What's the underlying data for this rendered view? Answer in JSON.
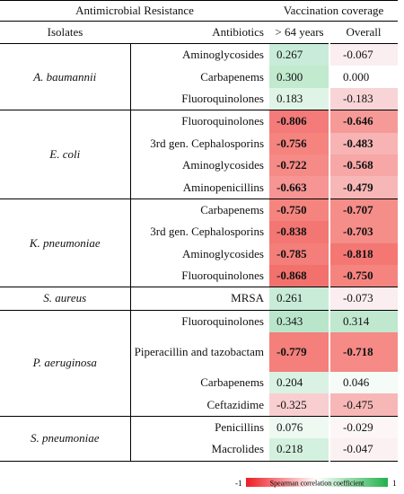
{
  "header": {
    "group_left": "Antimicrobial Resistance",
    "group_right": "Vaccination coverage",
    "col_isolates": "Isolates",
    "col_antibiotics": "Antibiotics",
    "col_age": "> 64 years",
    "col_overall": "Overall"
  },
  "groups": [
    {
      "isolate": "A. baumannii",
      "rows": [
        {
          "antibiotic": "Aminoglycosides",
          "v1": "0.267",
          "v2": "-0.067",
          "c1": "#c8ecd9",
          "c2": "#fbeef0",
          "b1": false,
          "b2": false
        },
        {
          "antibiotic": "Carbapenems",
          "v1": "0.300",
          "v2": "0.000",
          "c1": "#c2eace",
          "c2": "#ffffff",
          "b1": false,
          "b2": false
        },
        {
          "antibiotic": "Fluoroquinolones",
          "v1": "0.183",
          "v2": "-0.183",
          "c1": "#dff4e7",
          "c2": "#f8d4d7",
          "b1": false,
          "b2": false
        }
      ]
    },
    {
      "isolate": "E. coli",
      "rows": [
        {
          "antibiotic": "Fluoroquinolones",
          "v1": "-0.806",
          "v2": "-0.646",
          "c1": "#f47b79",
          "c2": "#f69a98",
          "b1": true,
          "b2": true
        },
        {
          "antibiotic": "3rd gen. Cephalosporins",
          "v1": "-0.756",
          "v2": "-0.483",
          "c1": "#f5847f",
          "c2": "#f8b4b4",
          "b1": true,
          "b2": true
        },
        {
          "antibiotic": "Aminoglycosides",
          "v1": "-0.722",
          "v2": "-0.568",
          "c1": "#f58a86",
          "c2": "#f7a7a5",
          "b1": true,
          "b2": true
        },
        {
          "antibiotic": "Aminopenicillins",
          "v1": "-0.663",
          "v2": "-0.479",
          "c1": "#f69593",
          "c2": "#f8b7b7",
          "b1": true,
          "b2": true
        }
      ]
    },
    {
      "isolate": "K. pneumoniae",
      "rows": [
        {
          "antibiotic": "Carbapenems",
          "v1": "-0.750",
          "v2": "-0.707",
          "c1": "#f5847f",
          "c2": "#f58d89",
          "b1": true,
          "b2": true
        },
        {
          "antibiotic": "3rd gen. Cephalosporins",
          "v1": "-0.838",
          "v2": "-0.703",
          "c1": "#f37672",
          "c2": "#f58d89",
          "b1": true,
          "b2": true
        },
        {
          "antibiotic": "Aminoglycosides",
          "v1": "-0.785",
          "v2": "-0.818",
          "c1": "#f47e7a",
          "c2": "#f47774",
          "b1": true,
          "b2": true
        },
        {
          "antibiotic": "Fluoroquinolones",
          "v1": "-0.868",
          "v2": "-0.750",
          "c1": "#f2716d",
          "c2": "#f5847f",
          "b1": true,
          "b2": true
        }
      ]
    },
    {
      "isolate": "S. aureus",
      "rows": [
        {
          "antibiotic": "MRSA",
          "v1": "0.261",
          "v2": "-0.073",
          "c1": "#c9ecd9",
          "c2": "#fbeef0",
          "b1": false,
          "b2": false
        }
      ]
    },
    {
      "isolate": "P. aeruginosa",
      "rows": [
        {
          "antibiotic": "Fluoroquinolones",
          "v1": "0.343",
          "v2": "0.314",
          "c1": "#b9e6cb",
          "c2": "#bfe8cf",
          "b1": false,
          "b2": false
        },
        {
          "antibiotic": "Piperacillin and tazobactam",
          "v1": "-0.779",
          "v2": "-0.718",
          "c1": "#f47f7b",
          "c2": "#f58a86",
          "b1": true,
          "b2": true,
          "tall": true
        },
        {
          "antibiotic": "Carbapenems",
          "v1": "0.204",
          "v2": "0.046",
          "c1": "#d9f2e3",
          "c2": "#f5fbf7",
          "b1": false,
          "b2": false
        },
        {
          "antibiotic": "Ceftazidime",
          "v1": "-0.325",
          "v2": "-0.475",
          "c1": "#f9ced1",
          "c2": "#f8b7b7",
          "b1": false,
          "b2": false
        }
      ]
    },
    {
      "isolate": "S. pneumoniae",
      "rows": [
        {
          "antibiotic": "Penicillins",
          "v1": "0.076",
          "v2": "-0.029",
          "c1": "#eef9f2",
          "c2": "#fdf6f6",
          "b1": false,
          "b2": false
        },
        {
          "antibiotic": "Macrolides",
          "v1": "0.218",
          "v2": "-0.047",
          "c1": "#d4f0df",
          "c2": "#fcf1f2",
          "b1": false,
          "b2": false
        }
      ]
    }
  ],
  "legend": {
    "min": "-1",
    "label": "Spearman correlation coefficient",
    "max": "1",
    "color_low": "#ee1c24",
    "color_mid": "#ffffff",
    "color_high": "#22b14c"
  }
}
